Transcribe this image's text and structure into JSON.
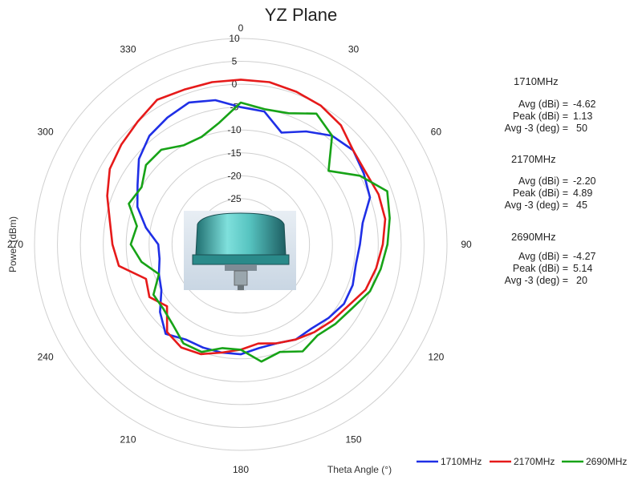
{
  "chart_data": {
    "type": "polar-line",
    "title": "YZ Plane",
    "radial_axis_label": "Power (dBm)",
    "angular_axis_label": "Theta  Angle (°)",
    "radial_range": [
      -35,
      10
    ],
    "radial_ticks": [
      10,
      5,
      0,
      -5,
      -10,
      -15,
      -20,
      -25
    ],
    "angular_ticks": [
      0,
      30,
      60,
      90,
      120,
      150,
      180,
      210,
      240,
      270,
      300,
      330
    ],
    "legend_position": "bottom-right",
    "series": [
      {
        "name": "1710MHz",
        "color": "#1f2fe6",
        "theta": [
          0,
          10,
          20,
          30,
          40,
          50,
          60,
          70,
          80,
          90,
          100,
          110,
          120,
          130,
          140,
          150,
          160,
          170,
          180,
          190,
          200,
          210,
          220,
          230,
          240,
          250,
          260,
          270,
          280,
          290,
          300,
          310,
          320,
          330,
          340,
          350
        ],
        "r": [
          -5,
          -5.5,
          -9,
          -6.5,
          -4,
          -3,
          -4,
          -5,
          -8,
          -9,
          -9.5,
          -9,
          -9,
          -10,
          -11,
          -11,
          -12,
          -12,
          -11,
          -11,
          -11,
          -11,
          -9.5,
          -12,
          -15,
          -16,
          -17,
          -17,
          -14,
          -11,
          -9,
          -6,
          -4,
          -3,
          -2,
          -3
        ],
        "stats": {
          "avg_label": "Avg (dBi) =",
          "avg": "-4.62",
          "peak_label": "Peak (dBi) =",
          "peak": "1.13",
          "beam_label": "Avg -3 (deg) =",
          "beam": "50"
        }
      },
      {
        "name": "2170MHz",
        "color": "#e61a1a",
        "theta": [
          0,
          10,
          20,
          30,
          40,
          50,
          60,
          70,
          80,
          90,
          100,
          110,
          120,
          130,
          140,
          150,
          160,
          170,
          180,
          190,
          200,
          210,
          220,
          230,
          240,
          250,
          260,
          270,
          280,
          290,
          300,
          310,
          320,
          330,
          340,
          350
        ],
        "r": [
          1,
          1,
          0.5,
          0,
          -1,
          -3,
          -3.5,
          -3,
          -3,
          -4,
          -5,
          -6,
          -8,
          -9,
          -10,
          -11,
          -12,
          -13,
          -12,
          -11,
          -9.5,
          -9,
          -10,
          -14,
          -12,
          -13,
          -8,
          -7,
          -6,
          -4,
          -2,
          -1,
          0,
          1.5,
          1,
          1
        ],
        "stats": {
          "avg_label": "Avg (dBi) =",
          "avg": "-2.20",
          "peak_label": "Peak (dBi) =",
          "peak": "4.89",
          "beam_label": "Avg -3 (deg) =",
          "beam": "45"
        }
      },
      {
        "name": "2690MHz",
        "color": "#17a317",
        "theta": [
          0,
          10,
          20,
          30,
          40,
          50,
          60,
          70,
          80,
          90,
          100,
          110,
          120,
          130,
          140,
          150,
          160,
          170,
          180,
          190,
          200,
          210,
          220,
          230,
          240,
          250,
          260,
          270,
          280,
          290,
          300,
          310,
          320,
          330,
          340,
          350
        ],
        "r": [
          -4,
          -5,
          -4.5,
          -2,
          -4,
          -10,
          -5,
          -1,
          -2,
          -3,
          -4,
          -5,
          -7,
          -8,
          -9,
          -8,
          -10,
          -9,
          -12,
          -12,
          -10,
          -10,
          -12,
          -13,
          -13,
          -16,
          -13,
          -11,
          -12,
          -9,
          -10,
          -8,
          -8,
          -10,
          -10,
          -8
        ],
        "stats": {
          "avg_label": "Avg (dBi) =",
          "avg": "-4.27",
          "peak_label": "Peak (dBi) =",
          "peak": "5.14",
          "beam_label": "Avg -3 (deg) =",
          "beam": "20"
        }
      }
    ]
  }
}
